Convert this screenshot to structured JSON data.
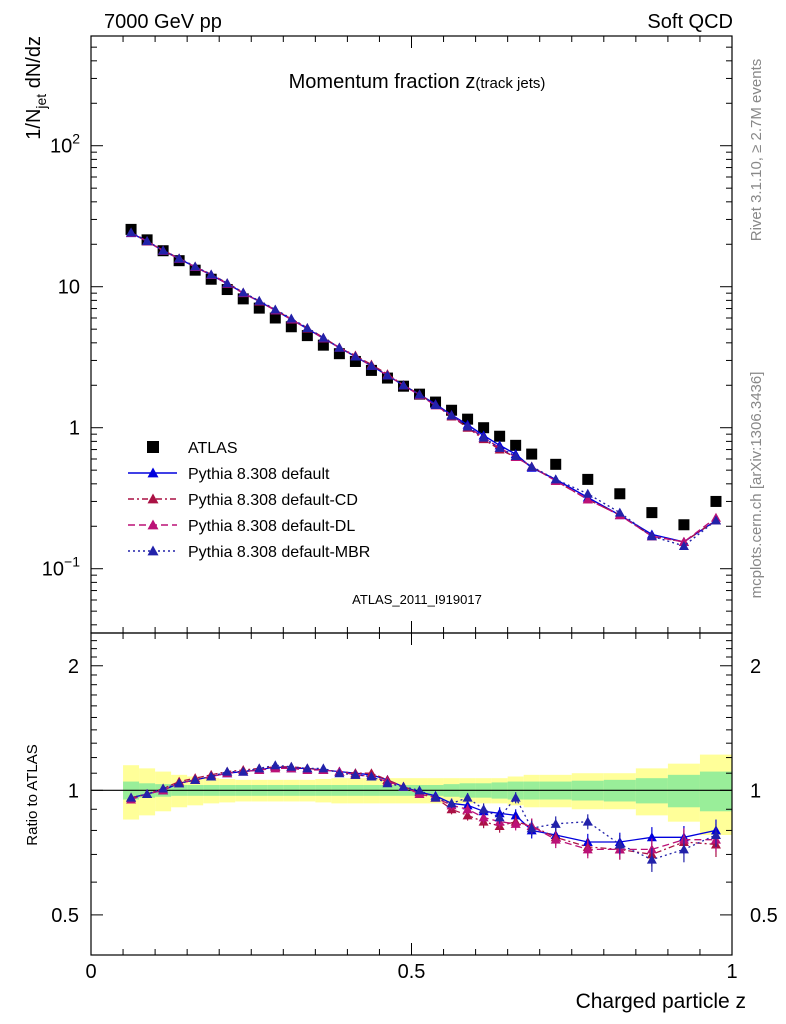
{
  "header": {
    "left": "7000 GeV pp",
    "right": "Soft QCD"
  },
  "side_texts": {
    "rivet": "Rivet 3.1.10, ≥ 2.7M events",
    "mcplots": "mcplots.cern.ch [arXiv:1306.3436]"
  },
  "chart_data": [
    {
      "type": "scatter",
      "title": "Momentum fraction z(track jets)",
      "title_main": "Momentum fraction z",
      "title_sub": "(track jets)",
      "ylabel": "1/N_jet dN/dz",
      "ylabel_main": "1/N",
      "ylabel_sub": "jet",
      "ylabel_tail": " dN/dz",
      "yscale": "log",
      "ylim": [
        0.035,
        600
      ],
      "xlim": [
        0,
        1
      ],
      "watermark": "ATLAS_2011_I919017",
      "legend_position": "bottom-left",
      "yticks": [
        {
          "value": 0.1,
          "base": "10",
          "exp": "−1"
        },
        {
          "value": 1,
          "base": "1",
          "exp": ""
        },
        {
          "value": 10,
          "base": "10",
          "exp": ""
        },
        {
          "value": 100,
          "base": "10",
          "exp": "2"
        }
      ],
      "x": [
        0.0625,
        0.0875,
        0.1125,
        0.1375,
        0.1625,
        0.1875,
        0.2125,
        0.2375,
        0.2625,
        0.2875,
        0.3125,
        0.3375,
        0.3625,
        0.3875,
        0.4125,
        0.4375,
        0.4625,
        0.4875,
        0.5125,
        0.5375,
        0.5625,
        0.5875,
        0.6125,
        0.6375,
        0.6625,
        0.6875,
        0.725,
        0.775,
        0.825,
        0.875,
        0.925,
        0.975
      ],
      "series": [
        {
          "name": "ATLAS",
          "color": "#000000",
          "marker": "square",
          "dash": "",
          "values": [
            25.5,
            21.5,
            18.0,
            15.3,
            13.1,
            11.3,
            9.55,
            8.2,
            7.05,
            6.0,
            5.2,
            4.5,
            3.85,
            3.35,
            2.95,
            2.55,
            2.25,
            1.97,
            1.73,
            1.52,
            1.33,
            1.15,
            1.0,
            0.87,
            0.75,
            0.65,
            0.55,
            0.43,
            0.34,
            0.25,
            0.205,
            0.3
          ]
        },
        {
          "name": "Pythia 8.308 default",
          "color": "#0000dd",
          "marker": "triangle",
          "dash": "",
          "values": [
            24.0,
            21.0,
            18.0,
            15.8,
            13.8,
            12.1,
            10.5,
            9.05,
            7.85,
            6.8,
            5.85,
            5.05,
            4.3,
            3.7,
            3.2,
            2.75,
            2.35,
            2.0,
            1.72,
            1.47,
            1.23,
            1.05,
            0.88,
            0.75,
            0.65,
            0.52,
            0.43,
            0.32,
            0.24,
            0.175,
            0.155,
            0.22
          ]
        },
        {
          "name": "Pythia 8.308 default-CD",
          "color": "#aa1144",
          "marker": "triangle",
          "dash": "6,3,2,3",
          "values": [
            24.2,
            21.0,
            18.1,
            15.9,
            13.9,
            12.2,
            10.6,
            9.1,
            7.9,
            6.85,
            5.9,
            5.1,
            4.35,
            3.7,
            3.25,
            2.8,
            2.4,
            2.0,
            1.72,
            1.45,
            1.2,
            1.0,
            0.83,
            0.7,
            0.62,
            0.53,
            0.42,
            0.31,
            0.24,
            0.17,
            0.155,
            0.22
          ]
        },
        {
          "name": "Pythia 8.308 default-DL",
          "color": "#bb1177",
          "marker": "triangle",
          "dash": "7,4",
          "values": [
            24.1,
            21.0,
            18.0,
            15.8,
            13.8,
            12.1,
            10.5,
            9.0,
            7.85,
            6.8,
            5.85,
            5.05,
            4.3,
            3.7,
            3.2,
            2.75,
            2.35,
            2.0,
            1.7,
            1.44,
            1.22,
            1.02,
            0.85,
            0.72,
            0.62,
            0.53,
            0.42,
            0.31,
            0.24,
            0.17,
            0.155,
            0.23
          ]
        },
        {
          "name": "Pythia 8.308 default-MBR",
          "color": "#2222aa",
          "marker": "triangle",
          "dash": "2,3",
          "values": [
            24.3,
            21.1,
            18.1,
            15.9,
            13.9,
            12.2,
            10.6,
            9.1,
            7.95,
            6.9,
            5.95,
            5.1,
            4.35,
            3.7,
            3.2,
            2.75,
            2.35,
            2.0,
            1.72,
            1.45,
            1.22,
            1.02,
            0.85,
            0.72,
            0.63,
            0.53,
            0.43,
            0.34,
            0.25,
            0.17,
            0.145,
            0.22
          ]
        }
      ]
    },
    {
      "type": "scatter",
      "ylabel": "Ratio to ATLAS",
      "xlabel": "Charged particle z",
      "yscale": "log",
      "ylim": [
        0.4,
        2.4
      ],
      "xlim": [
        0,
        1
      ],
      "xticks": [
        {
          "value": 0,
          "label": "0"
        },
        {
          "value": 0.5,
          "label": "0.5"
        },
        {
          "value": 1,
          "label": "1"
        }
      ],
      "yticks": [
        {
          "value": 0.5,
          "label": "0.5"
        },
        {
          "value": 1,
          "label": "1"
        },
        {
          "value": 2,
          "label": "2"
        }
      ],
      "bands": {
        "x_edges": [
          0.05,
          0.075,
          0.1,
          0.125,
          0.15,
          0.175,
          0.2,
          0.225,
          0.25,
          0.275,
          0.3,
          0.325,
          0.35,
          0.375,
          0.4,
          0.425,
          0.45,
          0.475,
          0.5,
          0.525,
          0.55,
          0.575,
          0.6,
          0.625,
          0.65,
          0.675,
          0.7,
          0.75,
          0.8,
          0.85,
          0.9,
          0.95,
          1.0
        ],
        "stat_half": [
          0.05,
          0.04,
          0.035,
          0.03,
          0.03,
          0.03,
          0.03,
          0.03,
          0.03,
          0.03,
          0.03,
          0.03,
          0.03,
          0.03,
          0.03,
          0.03,
          0.03,
          0.03,
          0.03,
          0.03,
          0.035,
          0.04,
          0.04,
          0.045,
          0.05,
          0.05,
          0.05,
          0.055,
          0.06,
          0.07,
          0.09,
          0.11
        ],
        "total_half": [
          0.15,
          0.13,
          0.11,
          0.09,
          0.08,
          0.07,
          0.065,
          0.06,
          0.06,
          0.06,
          0.06,
          0.06,
          0.065,
          0.07,
          0.07,
          0.07,
          0.07,
          0.07,
          0.07,
          0.07,
          0.07,
          0.07,
          0.07,
          0.07,
          0.08,
          0.09,
          0.09,
          0.1,
          0.1,
          0.13,
          0.16,
          0.22
        ],
        "stat_color": "#99ee99",
        "total_color": "#ffff99"
      },
      "series": [
        {
          "name": "Pythia 8.308 default",
          "color": "#0000dd",
          "values": [
            0.96,
            0.98,
            1.0,
            1.04,
            1.06,
            1.08,
            1.1,
            1.11,
            1.12,
            1.14,
            1.13,
            1.13,
            1.12,
            1.11,
            1.1,
            1.09,
            1.06,
            1.02,
            0.99,
            0.97,
            0.93,
            0.92,
            0.89,
            0.88,
            0.87,
            0.8,
            0.78,
            0.75,
            0.75,
            0.77,
            0.77,
            0.8
          ],
          "err": [
            0.02,
            0.02,
            0.02,
            0.02,
            0.02,
            0.02,
            0.02,
            0.02,
            0.02,
            0.02,
            0.02,
            0.02,
            0.02,
            0.02,
            0.02,
            0.02,
            0.02,
            0.02,
            0.02,
            0.02,
            0.025,
            0.025,
            0.03,
            0.03,
            0.03,
            0.035,
            0.035,
            0.035,
            0.04,
            0.045,
            0.05,
            0.05
          ]
        },
        {
          "name": "Pythia 8.308 default-CD",
          "color": "#aa1144",
          "values": [
            0.96,
            0.98,
            1.01,
            1.05,
            1.07,
            1.09,
            1.11,
            1.12,
            1.13,
            1.14,
            1.14,
            1.13,
            1.12,
            1.11,
            1.1,
            1.1,
            1.06,
            1.02,
            0.99,
            0.96,
            0.9,
            0.87,
            0.84,
            0.82,
            0.84,
            0.82,
            0.77,
            0.73,
            0.72,
            0.7,
            0.75,
            0.74
          ],
          "err": [
            0.02,
            0.02,
            0.02,
            0.02,
            0.02,
            0.02,
            0.02,
            0.02,
            0.02,
            0.02,
            0.02,
            0.02,
            0.02,
            0.02,
            0.02,
            0.02,
            0.02,
            0.02,
            0.02,
            0.02,
            0.025,
            0.025,
            0.03,
            0.03,
            0.03,
            0.035,
            0.035,
            0.035,
            0.04,
            0.045,
            0.05,
            0.05
          ]
        },
        {
          "name": "Pythia 8.308 default-DL",
          "color": "#bb1177",
          "values": [
            0.95,
            0.98,
            1.0,
            1.04,
            1.06,
            1.08,
            1.1,
            1.11,
            1.12,
            1.13,
            1.13,
            1.12,
            1.12,
            1.11,
            1.09,
            1.08,
            1.05,
            1.02,
            0.98,
            0.96,
            0.92,
            0.9,
            0.86,
            0.84,
            0.83,
            0.82,
            0.76,
            0.72,
            0.72,
            0.72,
            0.76,
            0.76
          ],
          "err": [
            0.02,
            0.02,
            0.02,
            0.02,
            0.02,
            0.02,
            0.02,
            0.02,
            0.02,
            0.02,
            0.02,
            0.02,
            0.02,
            0.02,
            0.02,
            0.02,
            0.02,
            0.02,
            0.02,
            0.02,
            0.025,
            0.025,
            0.03,
            0.03,
            0.03,
            0.035,
            0.035,
            0.035,
            0.04,
            0.045,
            0.05,
            0.05
          ]
        },
        {
          "name": "Pythia 8.308 default-MBR",
          "color": "#2222aa",
          "values": [
            0.96,
            0.98,
            1.01,
            1.04,
            1.06,
            1.08,
            1.11,
            1.11,
            1.13,
            1.15,
            1.14,
            1.13,
            1.13,
            1.1,
            1.09,
            1.08,
            1.04,
            1.02,
            1.0,
            0.96,
            0.93,
            0.96,
            0.9,
            0.86,
            0.96,
            0.81,
            0.83,
            0.84,
            0.74,
            0.68,
            0.72,
            0.78
          ],
          "err": [
            0.02,
            0.02,
            0.02,
            0.02,
            0.02,
            0.02,
            0.02,
            0.02,
            0.02,
            0.02,
            0.02,
            0.02,
            0.02,
            0.02,
            0.02,
            0.02,
            0.02,
            0.02,
            0.02,
            0.02,
            0.025,
            0.025,
            0.03,
            0.03,
            0.03,
            0.035,
            0.035,
            0.035,
            0.04,
            0.045,
            0.05,
            0.05
          ]
        }
      ]
    }
  ]
}
